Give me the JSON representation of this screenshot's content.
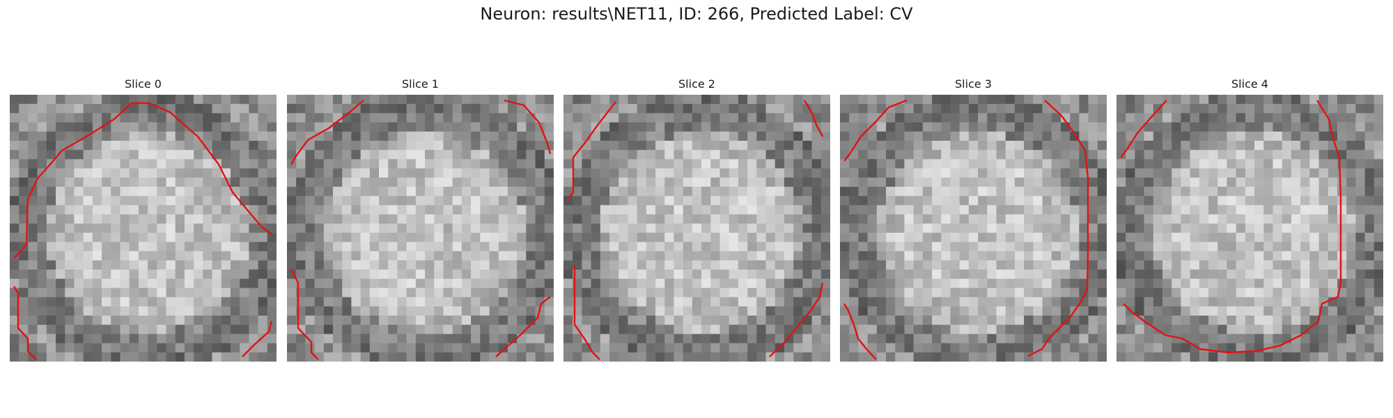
{
  "figure": {
    "title": "Neuron: results\\NET11, ID: 266, Predicted Label: CV"
  },
  "slices": [
    {
      "label": "Slice 0"
    },
    {
      "label": "Slice 1"
    },
    {
      "label": "Slice 2"
    },
    {
      "label": "Slice 3"
    },
    {
      "label": "Slice 4"
    }
  ],
  "colors": {
    "contour": "#e41111",
    "background": "#ffffff"
  }
}
